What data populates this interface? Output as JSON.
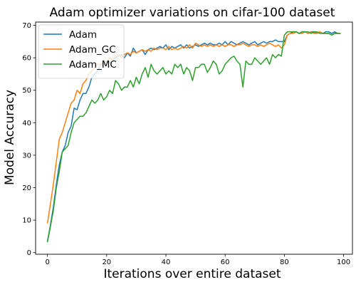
{
  "chart_data": {
    "type": "line",
    "title": "Adam optimizer variations on cifar-100 dataset",
    "xlabel": "Iterations over entire dataset",
    "ylabel": "Model Accuracy",
    "xlim": [
      -4,
      103
    ],
    "ylim": [
      -0.5,
      71
    ],
    "xticks": [
      0,
      20,
      40,
      60,
      80,
      100
    ],
    "yticks": [
      0,
      10,
      20,
      30,
      40,
      50,
      60,
      70
    ],
    "grid": false,
    "legend_position": "top-left",
    "series": [
      {
        "name": "Adam",
        "color": "#1f77b4",
        "x": [
          0,
          1,
          2,
          3,
          4,
          5,
          6,
          7,
          8,
          9,
          10,
          11,
          12,
          13,
          14,
          15,
          16,
          17,
          18,
          19,
          20,
          21,
          22,
          23,
          24,
          25,
          26,
          27,
          28,
          29,
          30,
          31,
          32,
          33,
          34,
          35,
          36,
          37,
          38,
          39,
          40,
          41,
          42,
          43,
          44,
          45,
          46,
          47,
          48,
          49,
          50,
          51,
          52,
          53,
          54,
          55,
          56,
          57,
          58,
          59,
          60,
          61,
          62,
          63,
          64,
          65,
          66,
          67,
          68,
          69,
          70,
          71,
          72,
          73,
          74,
          75,
          76,
          77,
          78,
          79,
          80,
          81,
          82,
          83,
          84,
          85,
          86,
          87,
          88,
          89,
          90,
          91,
          92,
          93,
          94,
          95,
          96,
          97,
          98,
          99
        ],
        "y": [
          3.5,
          8.5,
          14,
          21,
          27,
          31,
          33,
          37,
          39,
          44.5,
          44,
          47,
          49,
          49,
          51,
          54,
          55,
          56,
          58,
          58,
          59,
          58.5,
          59,
          60,
          60.5,
          61,
          60,
          61.5,
          60.5,
          63,
          61.5,
          62,
          62.5,
          61,
          62.5,
          63,
          62.5,
          63,
          63.5,
          63,
          64,
          62.5,
          63.5,
          63,
          63.5,
          64,
          63,
          64,
          63,
          63.5,
          64,
          63.5,
          64,
          64.5,
          64,
          64.5,
          64,
          64,
          64.5,
          64,
          65,
          64,
          65,
          64.5,
          64,
          64.5,
          65,
          64.5,
          64,
          64.5,
          65,
          64,
          64.5,
          65,
          64.5,
          65,
          65,
          65.5,
          65,
          65,
          65,
          67,
          67.5,
          68,
          68,
          67.5,
          68,
          68,
          67.5,
          68,
          68,
          67.5,
          68,
          67.5,
          68,
          68,
          67.5,
          68,
          67.5,
          67.5
        ]
      },
      {
        "name": "Adam_GC",
        "color": "#ff7f0e",
        "x": [
          0,
          1,
          2,
          3,
          4,
          5,
          6,
          7,
          8,
          9,
          10,
          11,
          12,
          13,
          14,
          15,
          16,
          17,
          18,
          19,
          20,
          21,
          22,
          23,
          24,
          25,
          26,
          27,
          28,
          29,
          30,
          31,
          32,
          33,
          34,
          35,
          36,
          37,
          38,
          39,
          40,
          41,
          42,
          43,
          44,
          45,
          46,
          47,
          48,
          49,
          50,
          51,
          52,
          53,
          54,
          55,
          56,
          57,
          58,
          59,
          60,
          61,
          62,
          63,
          64,
          65,
          66,
          67,
          68,
          69,
          70,
          71,
          72,
          73,
          74,
          75,
          76,
          77,
          78,
          79,
          80,
          81,
          82,
          83,
          84,
          85,
          86,
          87,
          88,
          89,
          90,
          91,
          92,
          93,
          94,
          95,
          96,
          97,
          98,
          99
        ],
        "y": [
          9,
          15,
          21,
          28,
          35,
          37,
          40,
          43,
          46,
          47,
          50,
          49,
          52,
          53,
          55,
          56,
          57,
          58,
          58,
          59,
          59,
          60,
          59.5,
          60.5,
          61,
          60,
          61,
          61.5,
          61,
          62,
          61.5,
          62,
          62.5,
          62,
          62.5,
          62,
          63,
          62.5,
          63,
          63,
          62.5,
          63.5,
          62.5,
          63,
          62.5,
          63,
          63.5,
          63,
          64,
          63,
          64.5,
          64,
          63.5,
          64,
          63.5,
          64,
          63.5,
          64,
          63.5,
          64,
          63.5,
          64,
          64,
          63.5,
          64,
          64,
          64.5,
          64,
          63.5,
          64,
          64,
          63.5,
          64,
          63.5,
          64,
          64.5,
          64,
          63.5,
          64,
          63,
          64,
          67,
          67.5,
          67.5,
          68,
          67.5,
          67.5,
          68,
          67.5,
          68,
          67.5,
          67.5,
          68,
          67.5,
          67.5,
          67.5,
          67,
          67.5,
          67.5,
          67.5
        ]
      },
      {
        "name": "Adam_MC",
        "color": "#2ca02c",
        "x": [
          0,
          1,
          2,
          3,
          4,
          5,
          6,
          7,
          8,
          9,
          10,
          11,
          12,
          13,
          14,
          15,
          16,
          17,
          18,
          19,
          20,
          21,
          22,
          23,
          24,
          25,
          26,
          27,
          28,
          29,
          30,
          31,
          32,
          33,
          34,
          35,
          36,
          37,
          38,
          39,
          40,
          41,
          42,
          43,
          44,
          45,
          46,
          47,
          48,
          49,
          50,
          51,
          52,
          53,
          54,
          55,
          56,
          57,
          58,
          59,
          60,
          61,
          62,
          63,
          64,
          65,
          66,
          67,
          68,
          69,
          70,
          71,
          72,
          73,
          74,
          75,
          76,
          77,
          78,
          79,
          80,
          81,
          82,
          83,
          84,
          85,
          86,
          87,
          88,
          89,
          90,
          91,
          92,
          93,
          94,
          95,
          96,
          97,
          98,
          99
        ],
        "y": [
          3.2,
          8,
          13,
          20,
          25,
          31,
          32,
          33,
          37,
          40,
          41,
          42,
          42,
          43,
          45,
          47,
          46,
          47,
          49,
          47,
          48,
          50,
          49,
          53,
          52,
          50,
          51,
          51,
          53,
          51,
          54,
          52,
          55,
          57,
          54,
          58,
          56,
          55,
          56,
          57,
          55,
          56,
          55,
          58,
          57,
          58,
          55,
          57,
          56,
          53,
          57,
          57,
          58,
          58,
          55.5,
          57,
          59,
          58,
          55,
          56,
          58,
          59,
          60,
          60.5,
          59,
          58,
          51,
          59,
          58,
          58,
          60,
          59,
          58,
          59,
          60,
          58,
          61,
          60,
          61,
          60.5,
          67,
          68,
          68,
          68,
          68,
          67.5,
          68,
          68,
          68,
          67.5,
          68,
          68,
          67.5,
          67.5,
          67.5,
          67.5,
          67,
          67.5,
          67.5,
          67.5
        ]
      }
    ]
  }
}
